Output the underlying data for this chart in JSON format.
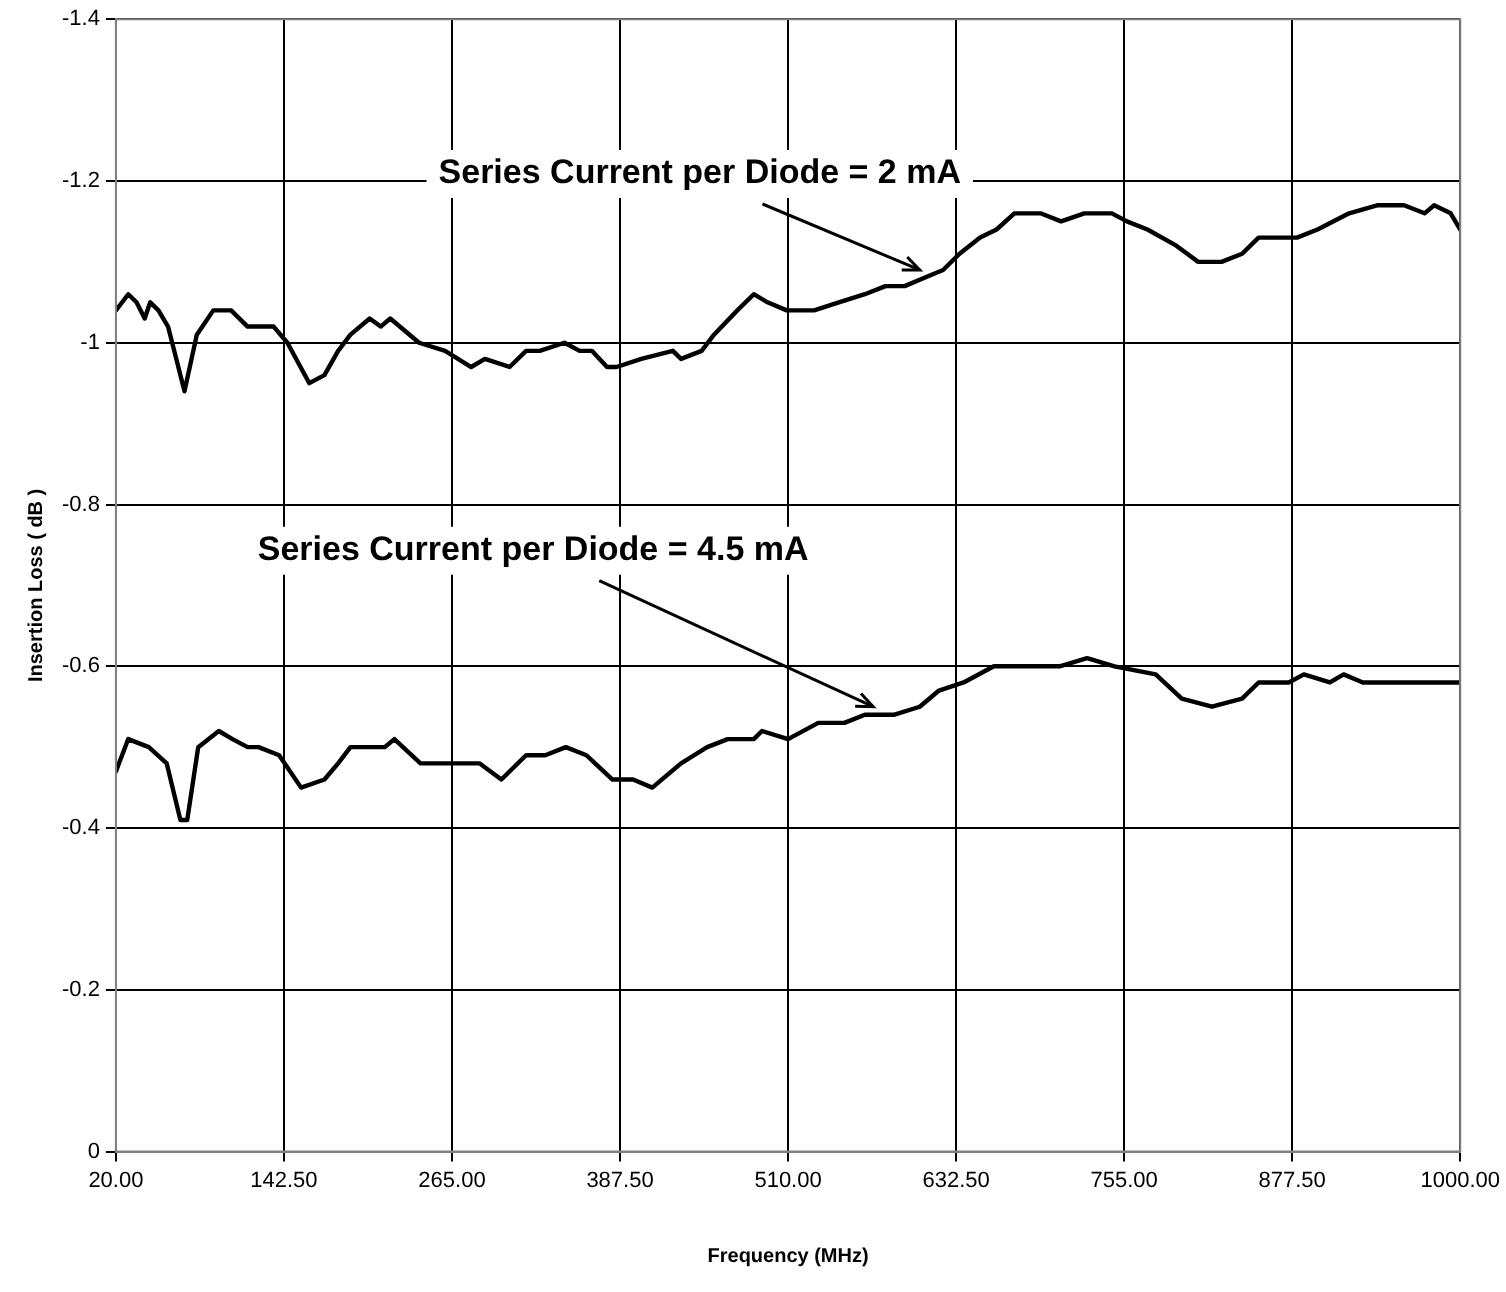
{
  "chart_data": {
    "type": "line",
    "xlabel": "Frequency (MHz)",
    "ylabel": "Insertion Loss ( dB )",
    "xlim": [
      20,
      1000
    ],
    "xticks": [
      {
        "value": 20,
        "label": "20.00"
      },
      {
        "value": 142.5,
        "label": "142.50"
      },
      {
        "value": 265,
        "label": "265.00"
      },
      {
        "value": 387.5,
        "label": "387.50"
      },
      {
        "value": 510,
        "label": "510.00"
      },
      {
        "value": 632.5,
        "label": "632.50"
      },
      {
        "value": 755,
        "label": "755.00"
      },
      {
        "value": 877.5,
        "label": "877.50"
      },
      {
        "value": 1000,
        "label": "1000.00"
      }
    ],
    "ylim": [
      0,
      -1.4
    ],
    "yticks": [
      0,
      -0.2,
      -0.4,
      -0.6,
      -0.8,
      -1,
      -1.2,
      -1.4
    ],
    "grid": true,
    "legend": false,
    "marker": "none",
    "line_style": "solid",
    "series": [
      {
        "color": "#000000",
        "x": [
          20,
          29,
          35,
          41,
          45,
          51,
          58,
          70,
          79,
          91,
          98,
          104,
          116,
          127,
          135,
          145,
          161,
          172,
          182,
          191,
          205,
          213,
          220,
          241,
          260,
          279,
          289,
          307,
          319,
          329,
          347,
          358,
          367,
          378,
          385,
          403,
          426,
          432,
          447,
          456,
          473,
          485,
          495,
          509,
          513,
          529,
          547,
          566,
          581,
          595,
          609,
          623,
          635,
          650,
          662,
          675,
          694,
          709,
          726,
          746,
          757,
          772,
          793,
          809,
          826,
          841,
          853,
          870,
          881,
          896,
          919,
          940,
          959,
          974,
          981,
          993,
          1000
        ],
        "values": [
          -1.04,
          -1.06,
          -1.05,
          -1.03,
          -1.05,
          -1.04,
          -1.02,
          -0.94,
          -1.01,
          -1.04,
          -1.04,
          -1.04,
          -1.02,
          -1.02,
          -1.02,
          -1.0,
          -0.95,
          -0.96,
          -0.99,
          -1.01,
          -1.03,
          -1.02,
          -1.03,
          -1.0,
          -0.99,
          -0.97,
          -0.98,
          -0.97,
          -0.99,
          -0.99,
          -1.0,
          -0.99,
          -0.99,
          -0.97,
          -0.97,
          -0.98,
          -0.99,
          -0.98,
          -0.99,
          -1.01,
          -1.04,
          -1.06,
          -1.05,
          -1.04,
          -1.04,
          -1.04,
          -1.05,
          -1.06,
          -1.07,
          -1.07,
          -1.08,
          -1.09,
          -1.11,
          -1.13,
          -1.14,
          -1.16,
          -1.16,
          -1.15,
          -1.16,
          -1.16,
          -1.15,
          -1.14,
          -1.12,
          -1.1,
          -1.1,
          -1.11,
          -1.13,
          -1.13,
          -1.13,
          -1.14,
          -1.16,
          -1.17,
          -1.17,
          -1.16,
          -1.17,
          -1.16,
          -1.14
        ]
      },
      {
        "color": "#000000",
        "x": [
          20,
          29,
          44,
          57,
          67,
          72,
          80,
          95,
          105,
          116,
          124,
          139,
          155,
          172,
          182,
          191,
          205,
          216,
          223,
          242,
          264,
          285,
          301,
          319,
          333,
          348,
          363,
          382,
          397,
          411,
          432,
          451,
          466,
          485,
          491,
          510,
          532,
          551,
          566,
          587,
          606,
          620,
          638,
          660,
          679,
          704,
          708,
          728,
          748,
          778,
          797,
          819,
          841,
          853,
          875,
          886,
          905,
          915,
          929,
          954,
          974,
          988,
          1000
        ],
        "values": [
          -0.47,
          -0.51,
          -0.5,
          -0.48,
          -0.41,
          -0.41,
          -0.5,
          -0.52,
          -0.51,
          -0.5,
          -0.5,
          -0.49,
          -0.45,
          -0.46,
          -0.48,
          -0.5,
          -0.5,
          -0.5,
          -0.51,
          -0.48,
          -0.48,
          -0.48,
          -0.46,
          -0.49,
          -0.49,
          -0.5,
          -0.49,
          -0.46,
          -0.46,
          -0.45,
          -0.48,
          -0.5,
          -0.51,
          -0.51,
          -0.52,
          -0.51,
          -0.53,
          -0.53,
          -0.54,
          -0.54,
          -0.55,
          -0.57,
          -0.58,
          -0.6,
          -0.6,
          -0.6,
          -0.6,
          -0.61,
          -0.6,
          -0.59,
          -0.56,
          -0.55,
          -0.56,
          -0.58,
          -0.58,
          -0.59,
          -0.58,
          -0.59,
          -0.58,
          -0.58,
          -0.58,
          -0.58,
          -0.58
        ]
      }
    ],
    "annotations": [
      {
        "text": "Series Current per Diode = 2 mA",
        "x": 606,
        "y": -1.09
      },
      {
        "text": "Series Current per Diode = 4.5 mA",
        "x": 572,
        "y": -0.55
      }
    ]
  }
}
